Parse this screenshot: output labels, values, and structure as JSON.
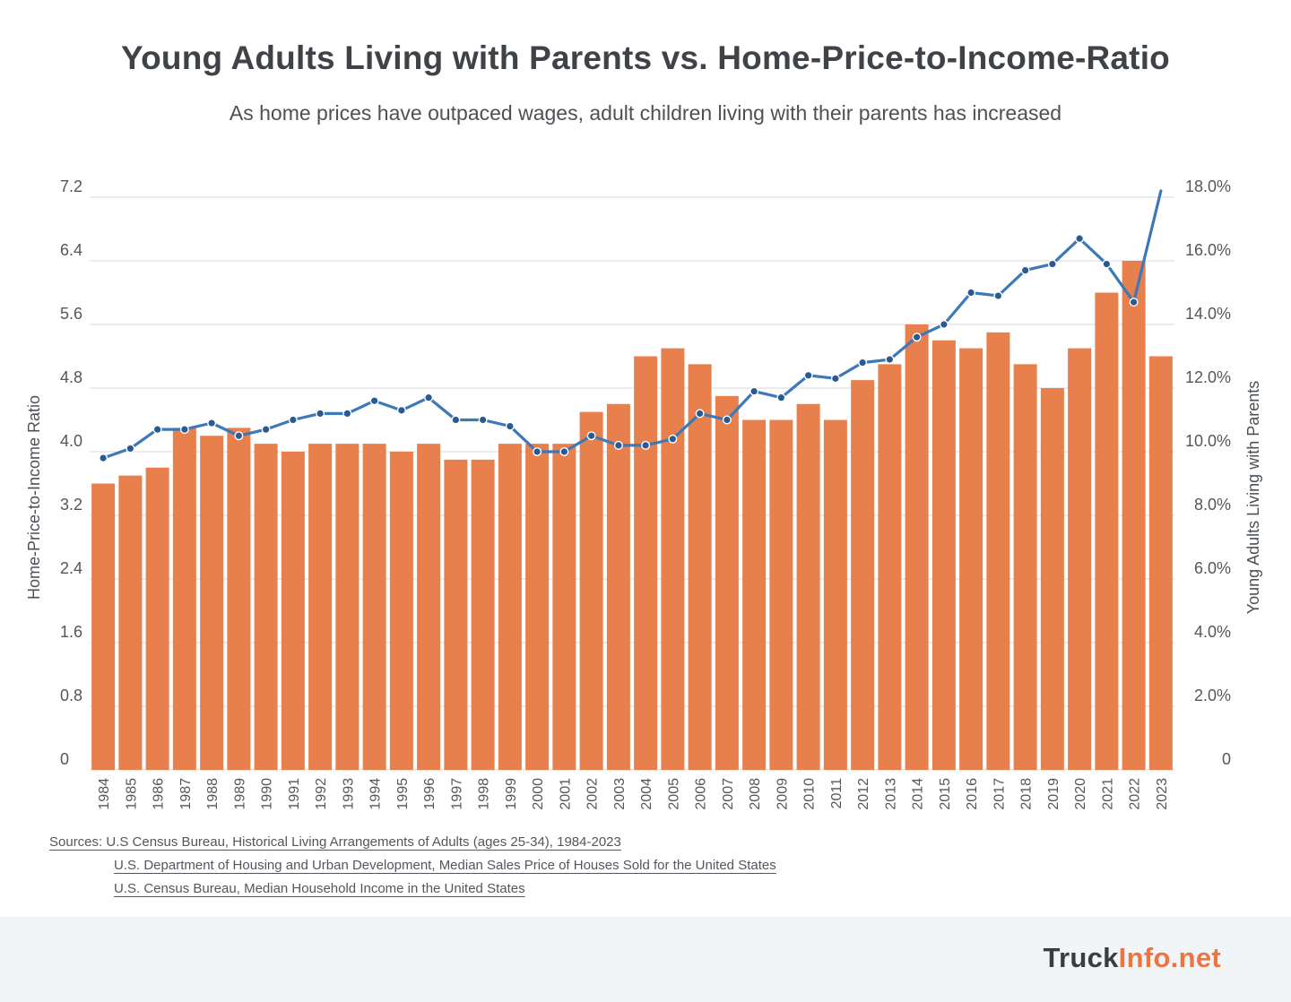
{
  "header": {
    "title": "Young Adults Living with Parents vs. Home-Price-to-Income-Ratio",
    "subtitle": "As home prices have outpaced wages, adult children living with their parents has increased"
  },
  "chart_data": {
    "type": "bar",
    "categories": [
      "1984",
      "1985",
      "1986",
      "1987",
      "1988",
      "1989",
      "1990",
      "1991",
      "1992",
      "1993",
      "1994",
      "1995",
      "1996",
      "1997",
      "1998",
      "1999",
      "2000",
      "2001",
      "2002",
      "2003",
      "2004",
      "2005",
      "2006",
      "2007",
      "2008",
      "2009",
      "2010",
      "2011",
      "2012",
      "2013",
      "2014",
      "2015",
      "2016",
      "2017",
      "2018",
      "2019",
      "2020",
      "2021",
      "2022",
      "2023"
    ],
    "series": [
      {
        "name": "Home-Price-to-Income Ratio",
        "type": "bar",
        "axis": "left",
        "color": "#e8804d",
        "values": [
          3.6,
          3.7,
          3.8,
          4.3,
          4.2,
          4.3,
          4.1,
          4.0,
          4.1,
          4.1,
          4.1,
          4.0,
          4.1,
          3.9,
          3.9,
          4.1,
          4.1,
          4.1,
          4.5,
          4.6,
          5.2,
          5.3,
          5.1,
          4.7,
          4.4,
          4.4,
          4.6,
          4.4,
          4.9,
          5.1,
          5.6,
          5.4,
          5.3,
          5.5,
          5.1,
          4.8,
          5.3,
          6.0,
          6.4,
          5.2
        ]
      },
      {
        "name": "Young Adults Living with Parents",
        "type": "line",
        "axis": "right",
        "color": "#3c79b8",
        "marker_color": "#2b5a92",
        "marker_on_last_point": false,
        "values": [
          9.8,
          10.1,
          10.7,
          10.7,
          10.9,
          10.5,
          10.7,
          11.0,
          11.2,
          11.2,
          11.6,
          11.3,
          11.7,
          11.0,
          11.0,
          10.8,
          10.0,
          10.0,
          10.5,
          10.2,
          10.2,
          10.4,
          11.2,
          11.0,
          11.9,
          11.7,
          12.4,
          12.3,
          12.8,
          12.9,
          13.6,
          14.0,
          15.0,
          14.9,
          15.7,
          15.9,
          16.7,
          15.9,
          14.7,
          18.2
        ]
      }
    ],
    "left_axis": {
      "label": "Home-Price-to-Income Ratio",
      "min": 0,
      "max": 7.2,
      "ticks": [
        "0",
        "0.8",
        "1.6",
        "2.4",
        "3.2",
        "4.0",
        "4.8",
        "5.6",
        "6.4",
        "7.2"
      ]
    },
    "right_axis": {
      "label": "Young Adults Living with Parents",
      "min": 0,
      "max": 18,
      "ticks": [
        "0",
        "2.0%",
        "4.0%",
        "6.0%",
        "8.0%",
        "10.0%",
        "12.0%",
        "14.0%",
        "16.0%",
        "18.0%"
      ]
    },
    "grid": true,
    "legend": false,
    "grid_color": "#d9d9d9"
  },
  "sources": {
    "line1": "Sources: U.S Census Bureau, Historical Living Arrangements of Adults (ages 25-34), 1984-2023",
    "line2": "U.S. Department of Housing and Urban Development, Median Sales Price of Houses Sold for the United States",
    "line3": "U.S. Census Bureau, Median Household Income in the United States"
  },
  "footer": {
    "brand_dark": "Truck",
    "brand_orange": "Info.net"
  },
  "colors": {
    "bar": "#e8804d",
    "line": "#3c79b8",
    "marker": "#2b5a92",
    "footer_bg": "#f2f5f8",
    "brand_orange": "#ef7540"
  }
}
